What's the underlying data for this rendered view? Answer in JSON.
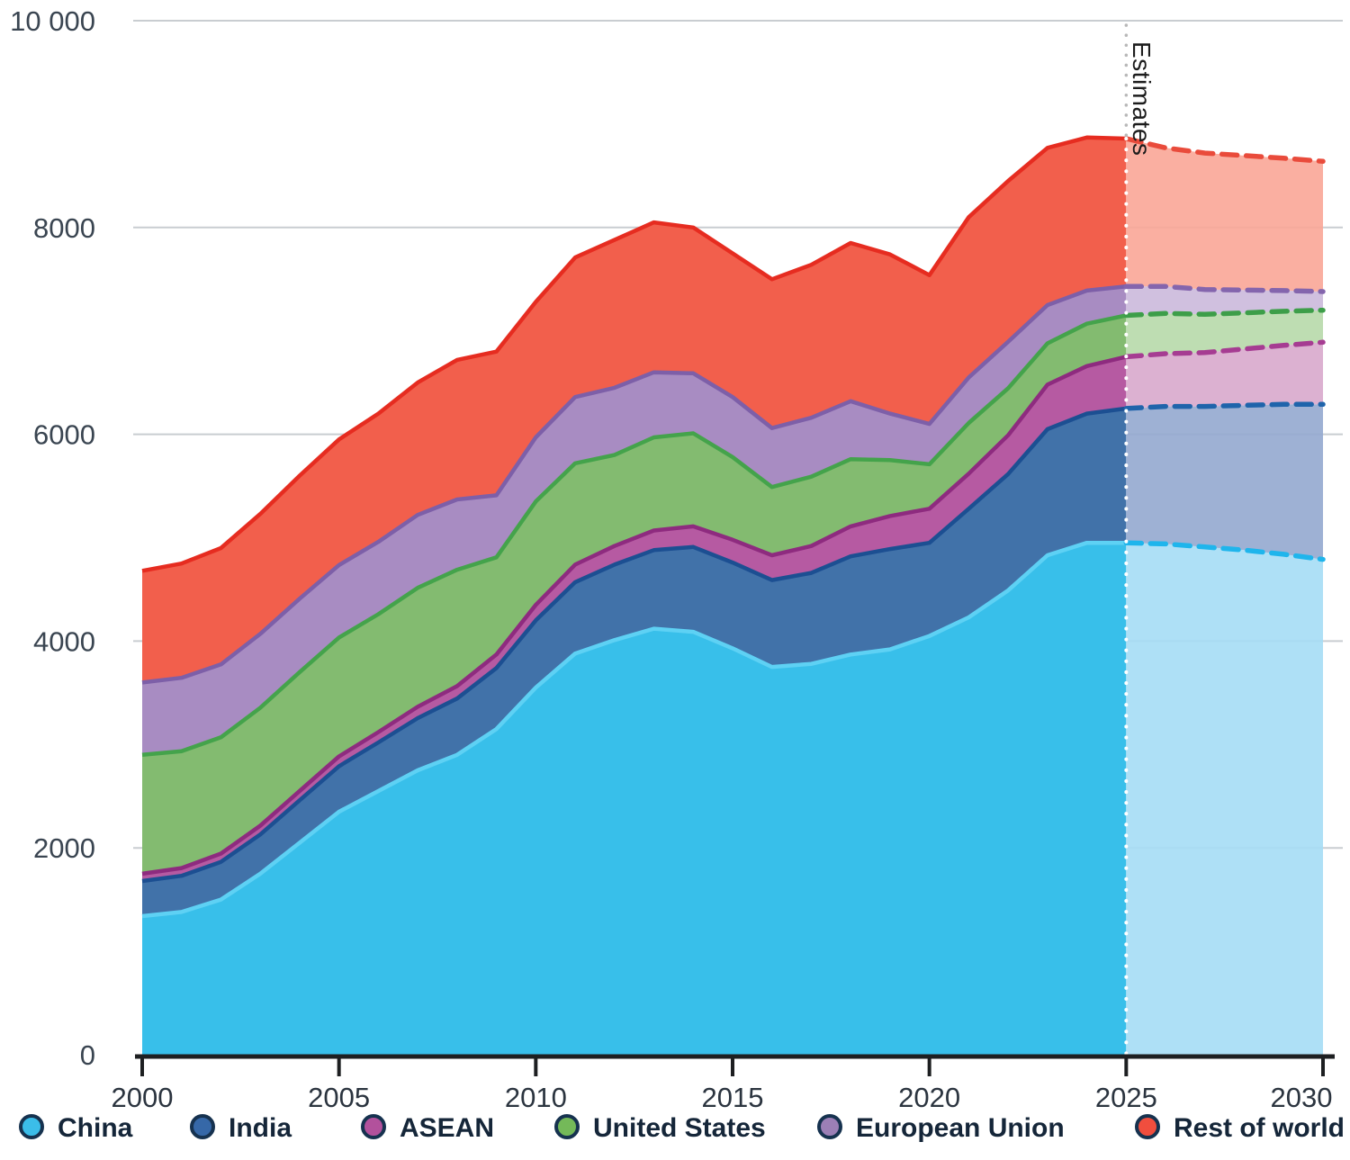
{
  "chart_data": {
    "type": "area",
    "stacked": true,
    "title": "",
    "xlabel": "",
    "ylabel": "",
    "ylim": [
      0,
      10000
    ],
    "grid": "horizontal",
    "legend_position": "bottom",
    "y_ticks": [
      {
        "value": 0,
        "label": "0"
      },
      {
        "value": 2000,
        "label": "2000"
      },
      {
        "value": 4000,
        "label": "4000"
      },
      {
        "value": 6000,
        "label": "6000"
      },
      {
        "value": 8000,
        "label": "8000"
      },
      {
        "value": 10000,
        "label": "10 000"
      }
    ],
    "x_ticks": [
      "2000",
      "2005",
      "2010",
      "2015",
      "2020",
      "2025",
      "2030"
    ],
    "years": [
      2000,
      2001,
      2002,
      2003,
      2004,
      2005,
      2006,
      2007,
      2008,
      2009,
      2010,
      2011,
      2012,
      2013,
      2014,
      2015,
      2016,
      2017,
      2018,
      2019,
      2020,
      2021,
      2022,
      2023,
      2024,
      2025,
      2026,
      2027,
      2028,
      2029,
      2030
    ],
    "estimates": {
      "label": "Estimates",
      "start_year": 2025
    },
    "series": [
      {
        "name": "China",
        "fill": "#38bfea",
        "stroke": "#5ed1f4",
        "est_fill": "#a5ddf5",
        "est_stroke": "#1fb5ec",
        "legend_dot": "#3bbde9",
        "values": [
          1340,
          1380,
          1500,
          1750,
          2050,
          2350,
          2550,
          2750,
          2900,
          3150,
          3550,
          3880,
          4010,
          4120,
          4090,
          3930,
          3750,
          3780,
          3870,
          3920,
          4050,
          4230,
          4490,
          4830,
          4950,
          4950,
          4940,
          4910,
          4880,
          4840,
          4790
        ]
      },
      {
        "name": "India",
        "fill": "#4172a9",
        "stroke": "#1c4f92",
        "est_fill": "#93a9cf",
        "est_stroke": "#1f64ab",
        "legend_dot": "#3668a8",
        "values": [
          340,
          350,
          365,
          380,
          410,
          440,
          470,
          505,
          545,
          590,
          650,
          690,
          730,
          760,
          820,
          830,
          840,
          880,
          950,
          970,
          900,
          1050,
          1125,
          1220,
          1250,
          1300,
          1330,
          1360,
          1400,
          1450,
          1500
        ]
      },
      {
        "name": "ASEAN",
        "fill": "#b65aa2",
        "stroke": "#8e2b7f",
        "est_fill": "#d8a9cc",
        "est_stroke": "#a63c92",
        "legend_dot": "#b2519c",
        "values": [
          70,
          75,
          80,
          85,
          90,
          95,
          100,
          110,
          120,
          130,
          150,
          170,
          180,
          190,
          200,
          220,
          240,
          260,
          290,
          320,
          330,
          340,
          375,
          430,
          460,
          500,
          510,
          520,
          545,
          570,
          600
        ]
      },
      {
        "name": "United States",
        "fill": "#83bb70",
        "stroke": "#44a34b",
        "est_fill": "#b7d9aa",
        "est_stroke": "#3d9e49",
        "legend_dot": "#74b959",
        "values": [
          1150,
          1130,
          1125,
          1140,
          1150,
          1150,
          1140,
          1150,
          1125,
          940,
          1000,
          980,
          880,
          900,
          900,
          800,
          660,
          670,
          650,
          540,
          430,
          490,
          455,
          400,
          410,
          400,
          390,
          370,
          350,
          330,
          310
        ]
      },
      {
        "name": "European Union",
        "fill": "#a88cc2",
        "stroke": "#7d5fa8",
        "est_fill": "#cbb9dc",
        "est_stroke": "#8465ad",
        "legend_dot": "#9b7fb6",
        "values": [
          700,
          710,
          705,
          715,
          710,
          700,
          700,
          705,
          680,
          600,
          620,
          640,
          650,
          630,
          580,
          580,
          570,
          570,
          560,
          450,
          390,
          440,
          450,
          370,
          320,
          280,
          260,
          240,
          220,
          200,
          180
        ]
      },
      {
        "name": "Rest of world",
        "fill": "#f25f4c",
        "stroke": "#e62c20",
        "est_fill": "#f9a697",
        "est_stroke": "#e94b3b",
        "legend_dot": "#f04e3e",
        "values": [
          1080,
          1105,
          1125,
          1160,
          1190,
          1215,
          1240,
          1280,
          1350,
          1390,
          1310,
          1350,
          1430,
          1450,
          1410,
          1390,
          1440,
          1480,
          1530,
          1540,
          1440,
          1550,
          1555,
          1520,
          1480,
          1430,
          1340,
          1320,
          1300,
          1280,
          1260
        ]
      }
    ]
  },
  "layout_colors": {
    "gridline": "#c9cdd1",
    "axis": "#1d1f21",
    "estimate_divider_top": "#b8b8b8",
    "estimate_divider": "#ffffff"
  }
}
